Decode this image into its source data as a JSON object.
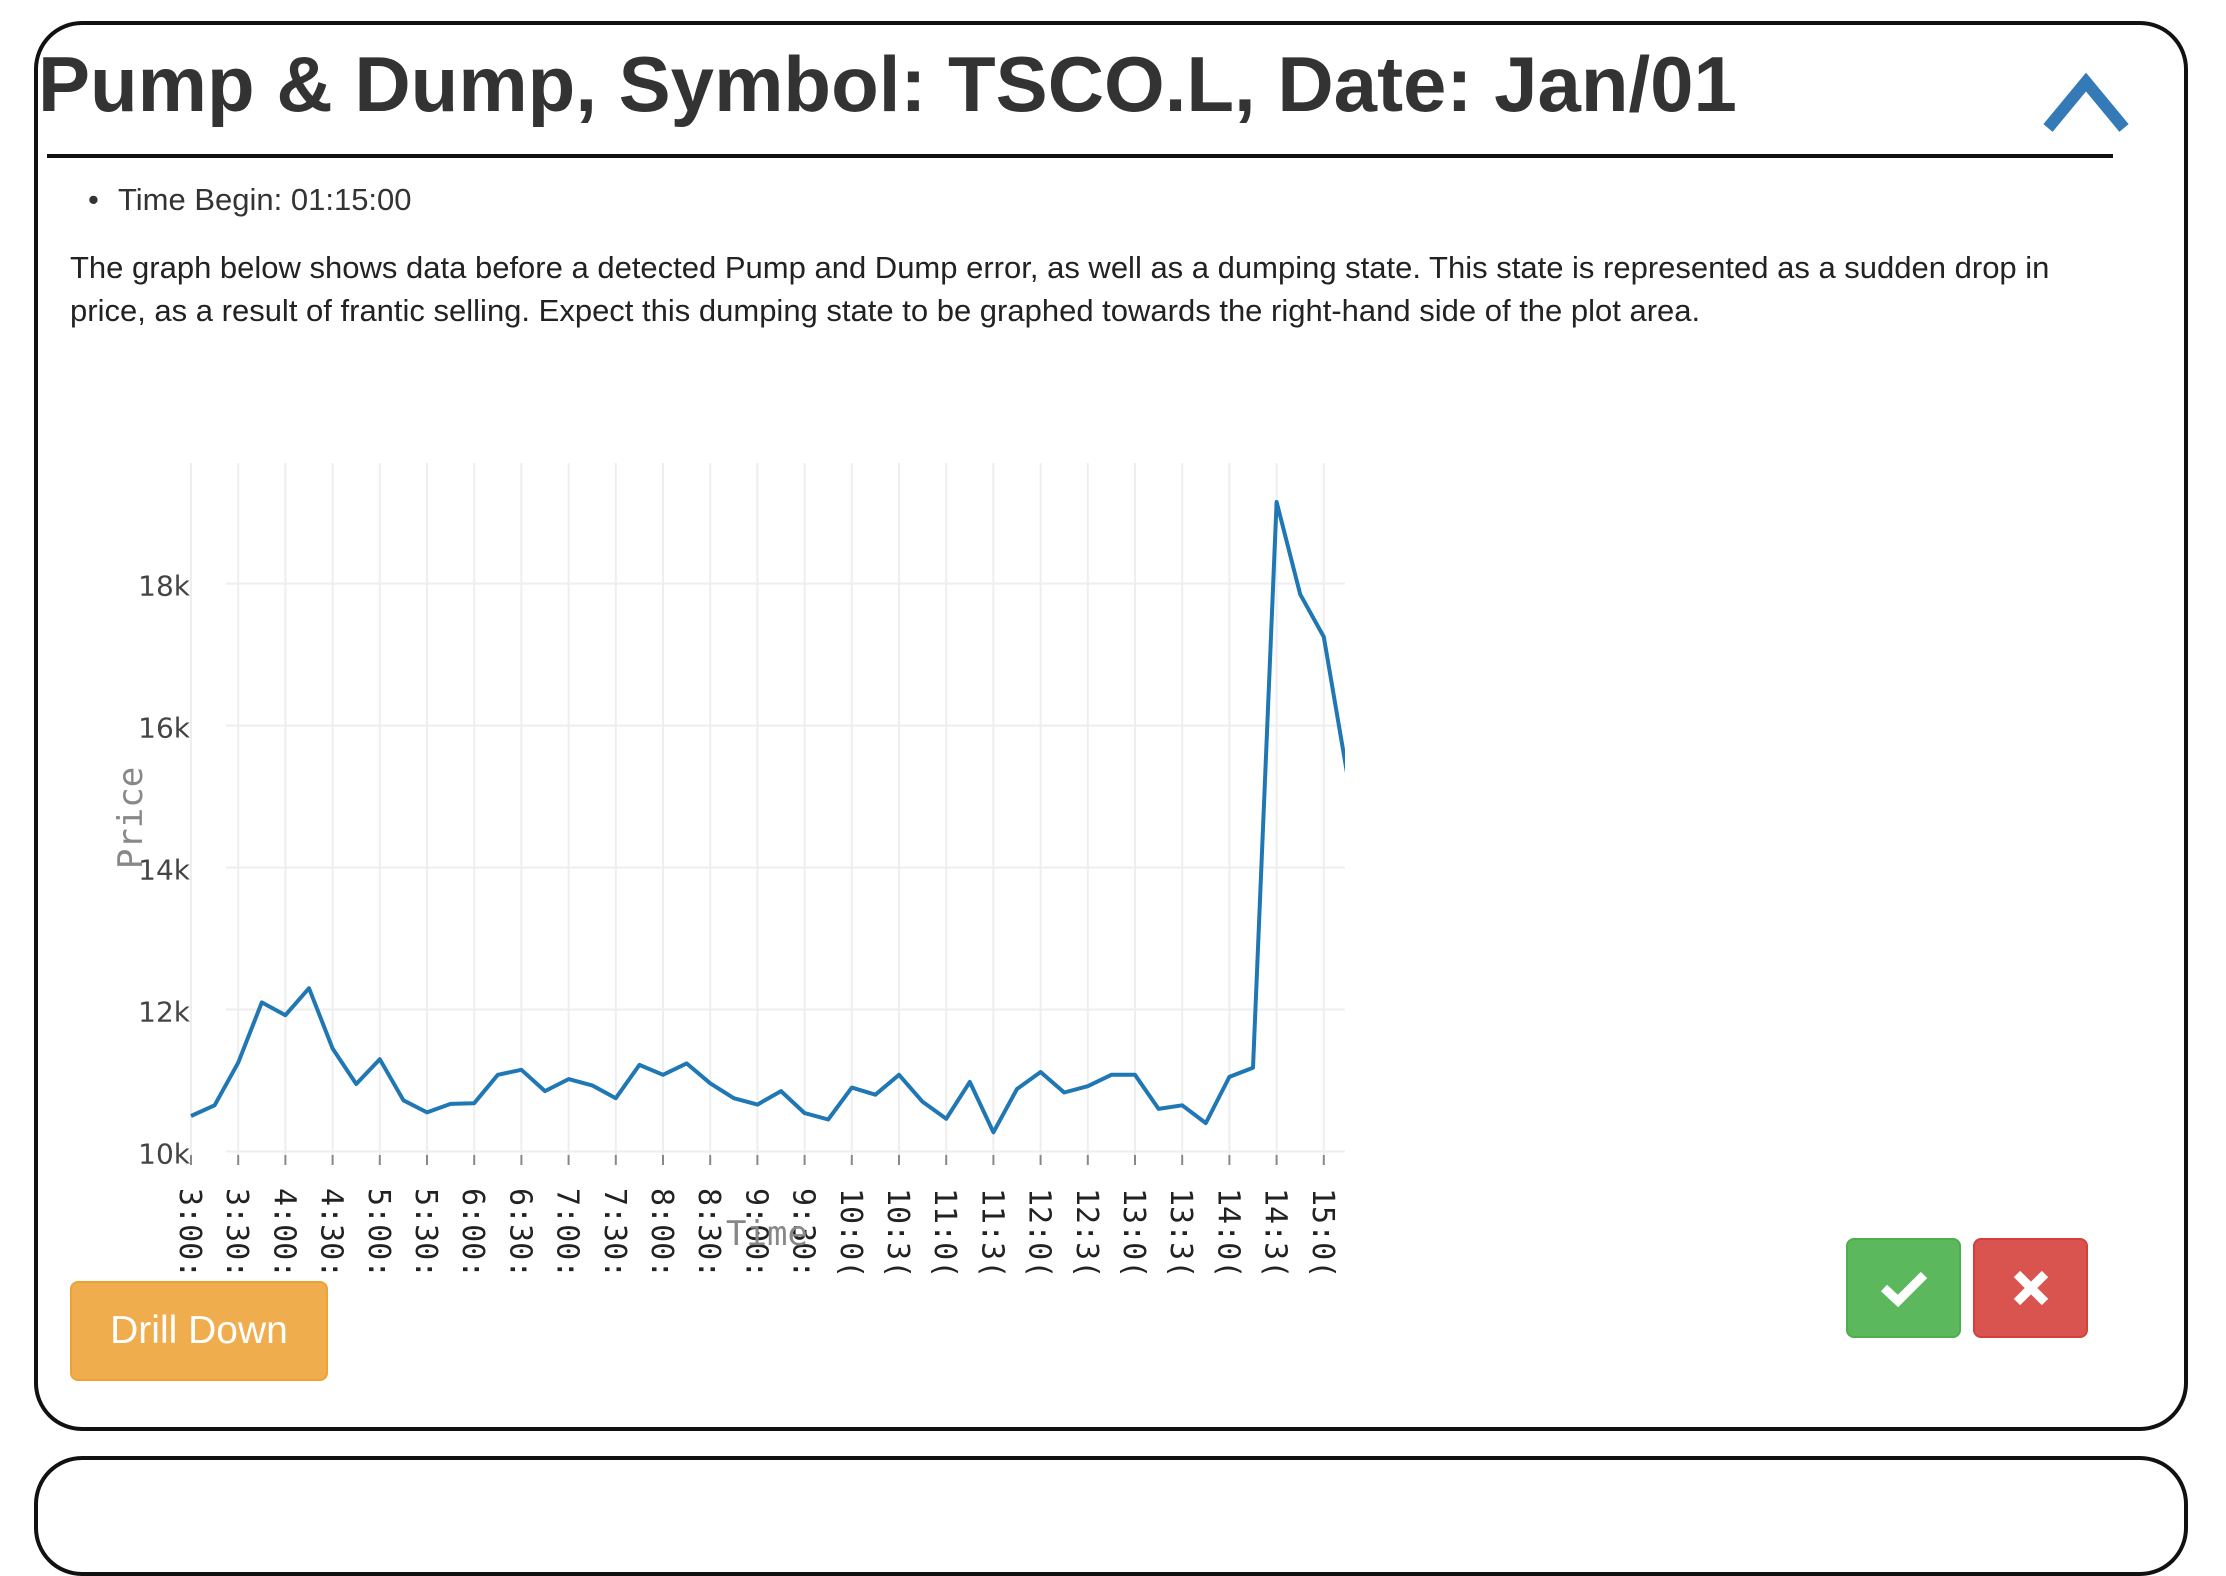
{
  "card": {
    "title": "Pump & Dump, Symbol: TSCO.L, Date: Jan/01",
    "meta": [
      "Time Begin: 01:15:00"
    ],
    "description": "The graph below shows data before a detected Pump and Dump error, as well as a dumping state. This state is represented as a sudden drop in price, as a result of frantic selling. Expect this dumping state to be graphed towards the right-hand side of the plot area.",
    "drill_label": "Drill Down",
    "colors": {
      "line": "#1f77b4",
      "approve": "#5cb85c",
      "reject": "#d9534f",
      "drill": "#f0ad4e"
    },
    "icons": {
      "collapse": "chevron-up-icon",
      "approve": "check-icon",
      "reject": "close-icon"
    }
  },
  "chart_data": {
    "type": "line",
    "title": "",
    "xlabel": "Time",
    "ylabel": "Price",
    "ylim": [
      9950,
      19700
    ],
    "yticks": [
      10000,
      12000,
      14000,
      16000,
      18000
    ],
    "ytick_labels": [
      "10k",
      "12k",
      "14k",
      "16k",
      "18k"
    ],
    "xticks": [
      "3:00:",
      "3:30:",
      "4:00:",
      "4:30:",
      "5:00:",
      "5:30:",
      "6:00:",
      "6:30:",
      "7:00:",
      "7:30:",
      "8:00:",
      "8:30:",
      "9:00:",
      "9:30:",
      "10:0(",
      "10:3(",
      "11:0(",
      "11:3(",
      "12:0(",
      "12:3(",
      "13:0(",
      "13:3(",
      "14:0(",
      "14:3(",
      "15:0("
    ],
    "grid": true,
    "series": [
      {
        "x": [
          "3:00",
          "3:15",
          "3:30",
          "3:45",
          "4:00",
          "4:15",
          "4:30",
          "4:45",
          "5:00",
          "5:15",
          "5:30",
          "5:45",
          "6:00",
          "6:15",
          "6:30",
          "6:45",
          "7:00",
          "7:15",
          "7:30",
          "7:45",
          "8:00",
          "8:15",
          "8:30",
          "8:45",
          "9:00",
          "9:15",
          "9:30",
          "9:45",
          "10:00",
          "10:15",
          "10:30",
          "10:45",
          "11:00",
          "11:15",
          "11:30",
          "11:45",
          "12:00",
          "12:15",
          "12:30",
          "12:45",
          "13:00",
          "13:15",
          "13:30",
          "13:45",
          "14:00",
          "14:15",
          "14:30",
          "14:45",
          "15:00",
          "15:15"
        ],
        "values": [
          10500,
          10650,
          11250,
          12100,
          11920,
          12300,
          11450,
          10950,
          11300,
          10720,
          10550,
          10670,
          10680,
          11080,
          11150,
          10850,
          11020,
          10930,
          10750,
          11220,
          11080,
          11240,
          10960,
          10750,
          10660,
          10850,
          10540,
          10450,
          10900,
          10800,
          11080,
          10700,
          10460,
          10980,
          10270,
          10880,
          11120,
          10830,
          10920,
          11080,
          11080,
          10600,
          10650,
          10400,
          11050,
          11180,
          19150,
          17850,
          17250,
          15300
        ]
      }
    ]
  }
}
